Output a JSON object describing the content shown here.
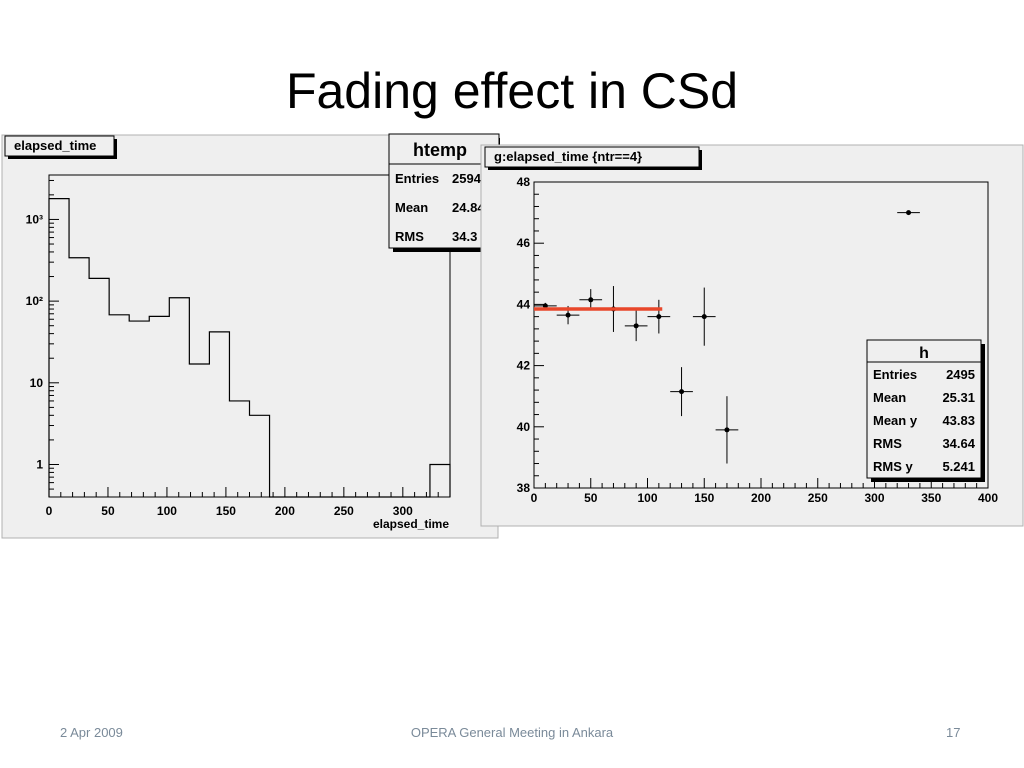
{
  "slide": {
    "title": "Fading effect in CSd",
    "footer_date": "2 Apr 2009",
    "footer_center": "OPERA General Meeting in Ankara",
    "page_number": "17"
  },
  "colors": {
    "panel_bg": "#efefef",
    "fit_line": "#e8472a",
    "ink": "#000000"
  },
  "chart_data": [
    {
      "type": "bar",
      "subtype": "step-histogram",
      "title": "elapsed_time",
      "xlabel": "elapsed_time",
      "ylabel": "",
      "xlim": [
        0,
        340
      ],
      "ylog": true,
      "ylim": [
        0.4,
        3500
      ],
      "bin_edges": [
        0,
        17,
        34,
        51,
        68,
        85,
        102,
        119,
        136,
        153,
        170,
        187,
        204,
        221,
        238,
        255,
        272,
        289,
        306,
        323,
        340
      ],
      "values": [
        1800,
        340,
        190,
        68,
        57,
        65,
        110,
        17,
        42,
        6,
        4,
        0,
        0,
        0,
        0,
        0,
        0,
        0,
        0,
        1
      ],
      "x_ticks": [
        0,
        50,
        100,
        150,
        200,
        250,
        300
      ],
      "y_ticks": [
        {
          "value": 1,
          "label": "1"
        },
        {
          "value": 10,
          "label": "10"
        },
        {
          "value": 100,
          "label": "10²"
        },
        {
          "value": 1000,
          "label": "10³"
        }
      ],
      "stats_box": {
        "name": "htemp",
        "rows": [
          {
            "label": "Entries",
            "value": "2594"
          },
          {
            "label": "Mean",
            "value": "24.84"
          },
          {
            "label": "RMS",
            "value": "34.3"
          }
        ]
      }
    },
    {
      "type": "scatter",
      "subtype": "profile-with-errors",
      "title": "g:elapsed_time {ntr==4}",
      "xlabel": "",
      "ylabel": "",
      "xlim": [
        0,
        400
      ],
      "ylim": [
        38,
        48
      ],
      "x_ticks": [
        0,
        50,
        100,
        150,
        200,
        250,
        300,
        350,
        400
      ],
      "y_ticks": [
        38,
        40,
        42,
        44,
        46,
        48
      ],
      "points": [
        {
          "x": 10,
          "y": 43.95,
          "xerr": 10,
          "yerr": 0.1
        },
        {
          "x": 30,
          "y": 43.65,
          "xerr": 10,
          "yerr": 0.3
        },
        {
          "x": 50,
          "y": 44.15,
          "xerr": 10,
          "yerr": 0.35
        },
        {
          "x": 70,
          "y": 43.85,
          "xerr": 10,
          "yerr": 0.75
        },
        {
          "x": 90,
          "y": 43.3,
          "xerr": 10,
          "yerr": 0.5
        },
        {
          "x": 110,
          "y": 43.6,
          "xerr": 10,
          "yerr": 0.55
        },
        {
          "x": 130,
          "y": 41.15,
          "xerr": 10,
          "yerr": 0.8
        },
        {
          "x": 150,
          "y": 43.6,
          "xerr": 10,
          "yerr": 0.95
        },
        {
          "x": 170,
          "y": 39.9,
          "xerr": 10,
          "yerr": 1.1
        },
        {
          "x": 330,
          "y": 47.0,
          "xerr": 10,
          "yerr": 0.05
        }
      ],
      "fit_line": {
        "x": [
          0,
          113
        ],
        "y": [
          43.85,
          43.85
        ]
      },
      "stats_box": {
        "name": "h",
        "rows": [
          {
            "label": "Entries",
            "value": "2495"
          },
          {
            "label": "Mean",
            "value": "25.31"
          },
          {
            "label": "Mean y",
            "value": "43.83"
          },
          {
            "label": "RMS",
            "value": "34.64"
          },
          {
            "label": "RMS y",
            "value": "5.241"
          }
        ]
      }
    }
  ]
}
